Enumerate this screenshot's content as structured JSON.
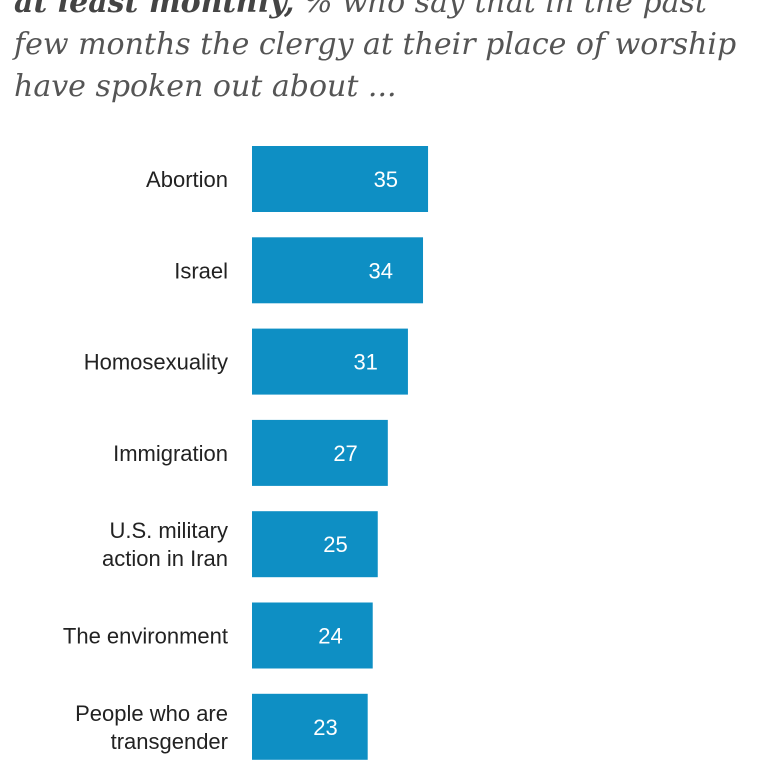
{
  "header": {
    "title_bold": "at least monthly,",
    "title_rest": " % who say that in the past few months the clergy at their place of worship have spoken out about ..."
  },
  "chart_data": {
    "type": "bar",
    "orientation": "horizontal",
    "categories": [
      [
        "Abortion"
      ],
      [
        "Israel"
      ],
      [
        "Homosexuality"
      ],
      [
        "Immigration"
      ],
      [
        "U.S. military",
        "action in Iran"
      ],
      [
        "The environment"
      ],
      [
        "People who are",
        "transgender"
      ]
    ],
    "values": [
      35,
      34,
      31,
      27,
      25,
      24,
      23
    ],
    "bar_color": "#0e8fc4",
    "xlim": [
      0,
      100
    ],
    "grid": false,
    "legend": "none"
  }
}
